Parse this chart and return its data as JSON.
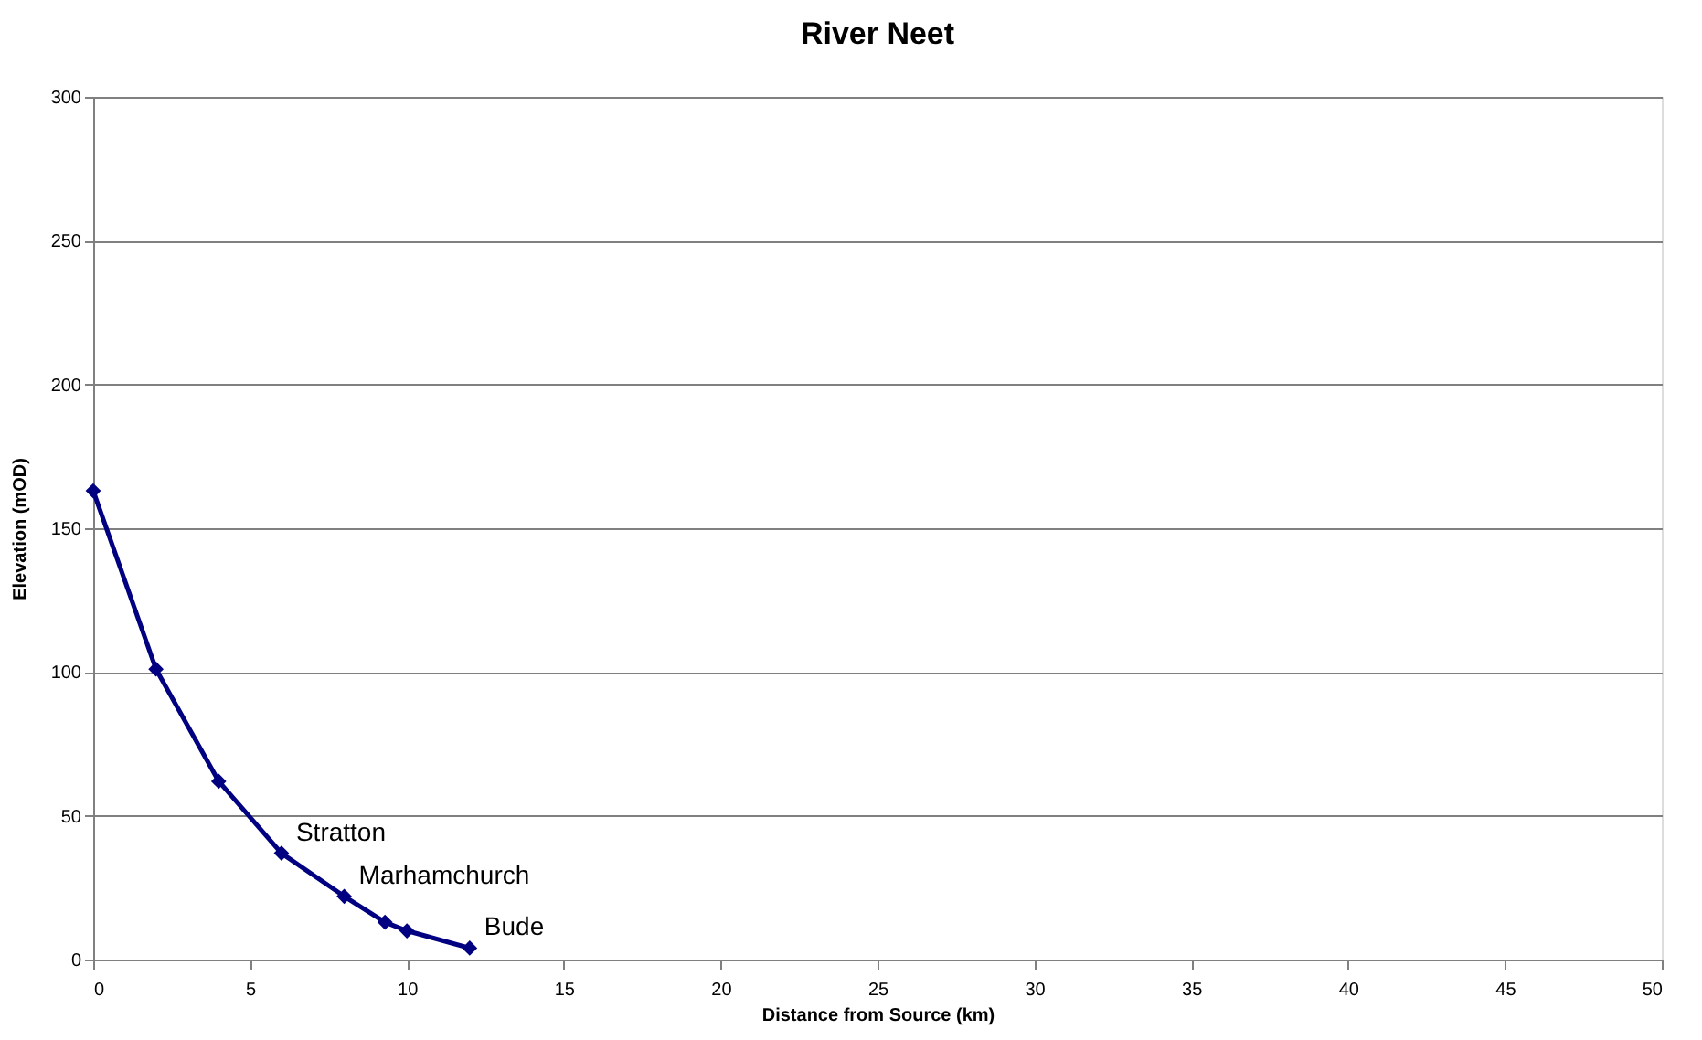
{
  "chart_data": {
    "type": "line",
    "title": "River Neet",
    "xlabel": "Distance from Source (km)",
    "ylabel": "Elevation (mOD)",
    "x": [
      0,
      2,
      4,
      6,
      8,
      9.3,
      10,
      12
    ],
    "series": [
      {
        "color": "#000080",
        "values": [
          163,
          101,
          62,
          37,
          22,
          13,
          10,
          4
        ]
      }
    ],
    "xlim": [
      0,
      50
    ],
    "xticks": [
      0,
      5,
      10,
      15,
      20,
      25,
      30,
      35,
      40,
      45,
      50
    ],
    "ylim": [
      0,
      300
    ],
    "yticks": [
      0,
      50,
      100,
      150,
      200,
      250,
      300
    ],
    "grid": "y",
    "marker": "diamond",
    "line_style": "solid",
    "annotations": [
      {
        "text": "Stratton",
        "x": 6,
        "y": 37
      },
      {
        "text": "Marhamchurch",
        "x": 8,
        "y": 22
      },
      {
        "text": "Bude",
        "x": 12,
        "y": 4
      }
    ]
  }
}
